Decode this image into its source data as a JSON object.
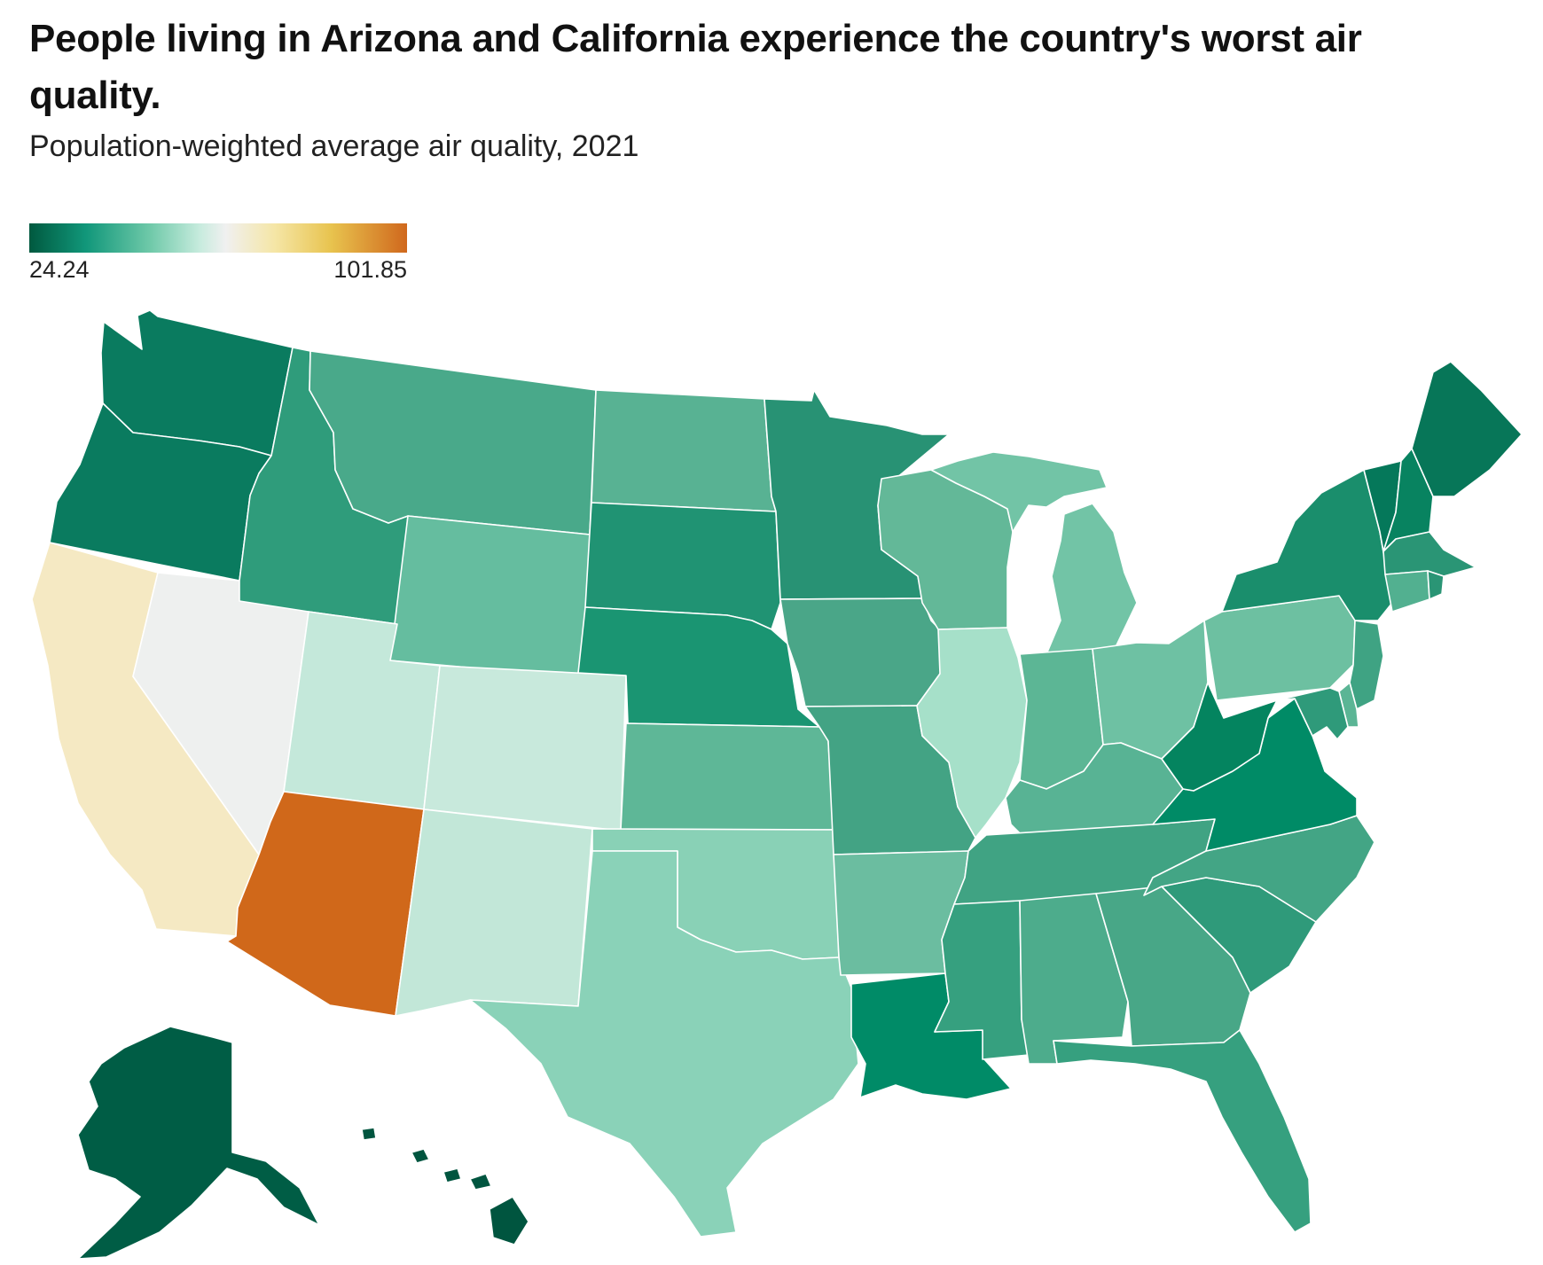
{
  "header": {
    "title": "People living in Arizona and California experience the country's worst air quality.",
    "subtitle": "Population-weighted average air quality, 2021"
  },
  "legend": {
    "min_label": "24.24",
    "max_label": "101.85",
    "min": 24.24,
    "max": 101.85,
    "colors": [
      "#00593f",
      "#11977a",
      "#6fc9a9",
      "#c6ebdd",
      "#f0f0f0",
      "#f5e6a6",
      "#e8c34e",
      "#d0681d"
    ]
  },
  "map_data": {
    "type": "choropleth",
    "region": "United States",
    "states": [
      {
        "id": "WA",
        "name": "Washington",
        "color": "#0a7b5f"
      },
      {
        "id": "OR",
        "name": "Oregon",
        "color": "#0a7b5f"
      },
      {
        "id": "CA",
        "name": "California",
        "color": "#f5e9c3"
      },
      {
        "id": "NV",
        "name": "Nevada",
        "color": "#eef0ef"
      },
      {
        "id": "ID",
        "name": "Idaho",
        "color": "#2f9c7b"
      },
      {
        "id": "MT",
        "name": "Montana",
        "color": "#49a98a"
      },
      {
        "id": "WY",
        "name": "Wyoming",
        "color": "#65bd9f"
      },
      {
        "id": "UT",
        "name": "Utah",
        "color": "#c4e8da"
      },
      {
        "id": "CO",
        "name": "Colorado",
        "color": "#c8e9dc"
      },
      {
        "id": "AZ",
        "name": "Arizona",
        "color": "#d0681a"
      },
      {
        "id": "NM",
        "name": "New Mexico",
        "color": "#c2e7d8"
      },
      {
        "id": "ND",
        "name": "North Dakota",
        "color": "#58b293"
      },
      {
        "id": "SD",
        "name": "South Dakota",
        "color": "#209373"
      },
      {
        "id": "NE",
        "name": "Nebraska",
        "color": "#1a9572"
      },
      {
        "id": "KS",
        "name": "Kansas",
        "color": "#5eb797"
      },
      {
        "id": "OK",
        "name": "Oklahoma",
        "color": "#89d1b6"
      },
      {
        "id": "TX",
        "name": "Texas",
        "color": "#8ad2b8"
      },
      {
        "id": "MN",
        "name": "Minnesota",
        "color": "#289274"
      },
      {
        "id": "IA",
        "name": "Iowa",
        "color": "#4aa688"
      },
      {
        "id": "MO",
        "name": "Missouri",
        "color": "#43a384"
      },
      {
        "id": "AR",
        "name": "Arkansas",
        "color": "#6bbda0"
      },
      {
        "id": "LA",
        "name": "Louisiana",
        "color": "#008b67"
      },
      {
        "id": "WI",
        "name": "Wisconsin",
        "color": "#63b898"
      },
      {
        "id": "IL",
        "name": "Illinois",
        "color": "#a6e0c9"
      },
      {
        "id": "MI",
        "name": "Michigan",
        "color": "#72c4a6"
      },
      {
        "id": "IN",
        "name": "Indiana",
        "color": "#5cb695"
      },
      {
        "id": "OH",
        "name": "Ohio",
        "color": "#6ec1a3"
      },
      {
        "id": "KY",
        "name": "Kentucky",
        "color": "#58b394"
      },
      {
        "id": "TN",
        "name": "Tennessee",
        "color": "#40a383"
      },
      {
        "id": "MS",
        "name": "Mississippi",
        "color": "#36a07f"
      },
      {
        "id": "AL",
        "name": "Alabama",
        "color": "#4dac8c"
      },
      {
        "id": "GA",
        "name": "Georgia",
        "color": "#48a787"
      },
      {
        "id": "FL",
        "name": "Florida",
        "color": "#36a07f"
      },
      {
        "id": "SC",
        "name": "South Carolina",
        "color": "#2f9a7a"
      },
      {
        "id": "NC",
        "name": "North Carolina",
        "color": "#43a585"
      },
      {
        "id": "VA",
        "name": "Virginia",
        "color": "#008b66"
      },
      {
        "id": "WV",
        "name": "West Virginia",
        "color": "#04845f"
      },
      {
        "id": "PA",
        "name": "Pennsylvania",
        "color": "#6dc0a1"
      },
      {
        "id": "NY",
        "name": "New York",
        "color": "#1a8e6c"
      },
      {
        "id": "VT",
        "name": "Vermont",
        "color": "#05785a"
      },
      {
        "id": "NH",
        "name": "New Hampshire",
        "color": "#088360"
      },
      {
        "id": "ME",
        "name": "Maine",
        "color": "#077658"
      },
      {
        "id": "MA",
        "name": "Massachusetts",
        "color": "#2a9575"
      },
      {
        "id": "CT",
        "name": "Connecticut",
        "color": "#52b090"
      },
      {
        "id": "RI",
        "name": "Rhode Island",
        "color": "#2a9575"
      },
      {
        "id": "NJ",
        "name": "New Jersey",
        "color": "#3fa383"
      },
      {
        "id": "DE",
        "name": "Delaware",
        "color": "#5bb595"
      },
      {
        "id": "MD",
        "name": "Maryland",
        "color": "#2f9a7a"
      },
      {
        "id": "AK",
        "name": "Alaska",
        "color": "#005d45"
      },
      {
        "id": "HI",
        "name": "Hawaii",
        "color": "#00553f"
      }
    ]
  }
}
